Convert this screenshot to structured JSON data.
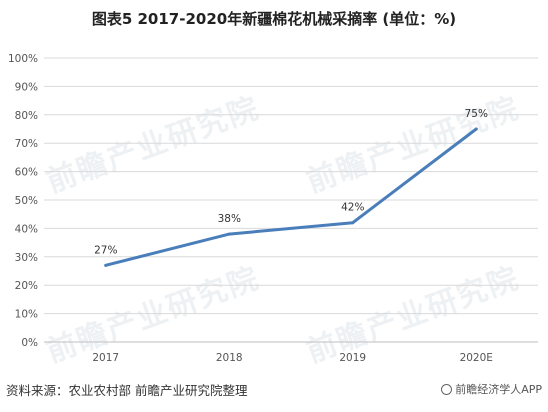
{
  "title": "图表5 2017-2020年新疆棉花机械采摘率 (单位：%)",
  "source": "资料来源：农业农村部 前瞻产业研究院整理",
  "brand": "前瞻经济学人APP",
  "watermark_text": "前瞻产业研究院",
  "colors": {
    "line": "#4a7ebb",
    "grid": "#d9d9d9",
    "axis": "#bfbfbf"
  },
  "chart_data": {
    "type": "line",
    "categories": [
      "2017",
      "2018",
      "2019",
      "2020E"
    ],
    "series": [
      {
        "values": [
          27,
          38,
          42,
          75
        ],
        "labels": [
          "27%",
          "38%",
          "42%",
          "75%"
        ]
      }
    ],
    "ylim": [
      0,
      100
    ],
    "yticks": [
      0,
      10,
      20,
      30,
      40,
      50,
      60,
      70,
      80,
      90,
      100
    ],
    "ytick_labels": [
      "0%",
      "10%",
      "20%",
      "30%",
      "40%",
      "50%",
      "60%",
      "70%",
      "80%",
      "90%",
      "100%"
    ],
    "grid": true,
    "legend": "none"
  }
}
